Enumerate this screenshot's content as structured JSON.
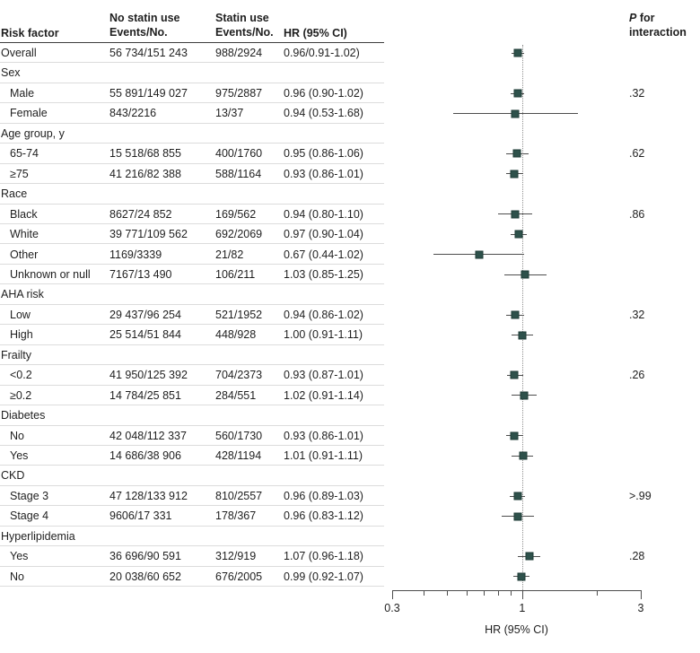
{
  "figure": {
    "col_header_risk": "Risk factor",
    "col_header_no_statin_l1": "No statin use",
    "col_header_no_statin_l2": "Events/No.",
    "col_header_statin_l1": "Statin use",
    "col_header_statin_l2": "Events/No.",
    "col_header_hr": "HR (95% CI)",
    "p_header_italic": "P",
    "p_header_after": " for",
    "p_header_line2": "interaction"
  },
  "chart_data": {
    "type": "scatter",
    "variant": "forest-plot",
    "xscale": "log",
    "xlim": [
      0.3,
      3
    ],
    "major_ticks": [
      {
        "value": 0.3,
        "label": "0.3"
      },
      {
        "value": 1,
        "label": "1"
      },
      {
        "value": 3,
        "label": "3"
      }
    ],
    "minor_ticks": [
      0.4,
      0.5,
      0.6,
      0.7,
      0.8,
      0.9,
      2
    ],
    "reference_line": 1,
    "xlabel": "HR (95% CI)",
    "legend": "none",
    "rows": [
      {
        "type": "data",
        "label": "Overall",
        "indent": false,
        "no_statin": "56 734/151 243",
        "statin": "988/2924",
        "hr_text": "0.96/0.91-1.02)",
        "hr": 0.96,
        "lo": 0.91,
        "hi": 1.02,
        "p": ""
      },
      {
        "type": "group",
        "label": "Sex"
      },
      {
        "type": "data",
        "label": "Male",
        "indent": true,
        "no_statin": "55 891/149 027",
        "statin": "975/2887",
        "hr_text": "0.96 (0.90-1.02)",
        "hr": 0.96,
        "lo": 0.9,
        "hi": 1.02,
        "p": ".32"
      },
      {
        "type": "data",
        "label": "Female",
        "indent": true,
        "no_statin": "843/2216",
        "statin": "13/37",
        "hr_text": "0.94 (0.53-1.68)",
        "hr": 0.94,
        "lo": 0.53,
        "hi": 1.68,
        "p": ""
      },
      {
        "type": "group",
        "label": "Age group, y"
      },
      {
        "type": "data",
        "label": "65-74",
        "indent": true,
        "no_statin": "15 518/68 855",
        "statin": "400/1760",
        "hr_text": "0.95 (0.86-1.06)",
        "hr": 0.95,
        "lo": 0.86,
        "hi": 1.06,
        "p": ".62"
      },
      {
        "type": "data",
        "label": "≥75",
        "indent": true,
        "no_statin": "41 216/82 388",
        "statin": "588/1164",
        "hr_text": "0.93 (0.86-1.01)",
        "hr": 0.93,
        "lo": 0.86,
        "hi": 1.01,
        "p": ""
      },
      {
        "type": "group",
        "label": "Race"
      },
      {
        "type": "data",
        "label": "Black",
        "indent": true,
        "no_statin": "8627/24 852",
        "statin": "169/562",
        "hr_text": "0.94 (0.80-1.10)",
        "hr": 0.94,
        "lo": 0.8,
        "hi": 1.1,
        "p": ".86"
      },
      {
        "type": "data",
        "label": "White",
        "indent": true,
        "no_statin": "39 771/109 562",
        "statin": "692/2069",
        "hr_text": "0.97 (0.90-1.04)",
        "hr": 0.97,
        "lo": 0.9,
        "hi": 1.04,
        "p": ""
      },
      {
        "type": "data",
        "label": "Other",
        "indent": true,
        "no_statin": "1169/3339",
        "statin": "21/82",
        "hr_text": "0.67 (0.44-1.02)",
        "hr": 0.67,
        "lo": 0.44,
        "hi": 1.02,
        "p": ""
      },
      {
        "type": "data",
        "label": "Unknown or null",
        "indent": true,
        "no_statin": "7167/13 490",
        "statin": "106/211",
        "hr_text": "1.03 (0.85-1.25)",
        "hr": 1.03,
        "lo": 0.85,
        "hi": 1.25,
        "p": ""
      },
      {
        "type": "group",
        "label": "AHA risk"
      },
      {
        "type": "data",
        "label": "Low",
        "indent": true,
        "no_statin": "29 437/96 254",
        "statin": "521/1952",
        "hr_text": "0.94 (0.86-1.02)",
        "hr": 0.94,
        "lo": 0.86,
        "hi": 1.02,
        "p": ".32"
      },
      {
        "type": "data",
        "label": "High",
        "indent": true,
        "no_statin": "25 514/51 844",
        "statin": "448/928",
        "hr_text": "1.00 (0.91-1.11)",
        "hr": 1.0,
        "lo": 0.91,
        "hi": 1.11,
        "p": ""
      },
      {
        "type": "group",
        "label": "Frailty"
      },
      {
        "type": "data",
        "label": "<0.2",
        "indent": true,
        "no_statin": "41 950/125 392",
        "statin": "704/2373",
        "hr_text": "0.93 (0.87-1.01)",
        "hr": 0.93,
        "lo": 0.87,
        "hi": 1.01,
        "p": ".26"
      },
      {
        "type": "data",
        "label": "≥0.2",
        "indent": true,
        "no_statin": "14 784/25 851",
        "statin": "284/551",
        "hr_text": "1.02 (0.91-1.14)",
        "hr": 1.02,
        "lo": 0.91,
        "hi": 1.14,
        "p": ""
      },
      {
        "type": "group",
        "label": "Diabetes"
      },
      {
        "type": "data",
        "label": "No",
        "indent": true,
        "no_statin": "42 048/112 337",
        "statin": "560/1730",
        "hr_text": "0.93 (0.86-1.01)",
        "hr": 0.93,
        "lo": 0.86,
        "hi": 1.01,
        "p": ""
      },
      {
        "type": "data",
        "label": "Yes",
        "indent": true,
        "no_statin": "14 686/38 906",
        "statin": "428/1194",
        "hr_text": "1.01 (0.91-1.11)",
        "hr": 1.01,
        "lo": 0.91,
        "hi": 1.11,
        "p": ""
      },
      {
        "type": "group",
        "label": "CKD"
      },
      {
        "type": "data",
        "label": "Stage 3",
        "indent": true,
        "no_statin": "47 128/133 912",
        "statin": "810/2557",
        "hr_text": "0.96 (0.89-1.03)",
        "hr": 0.96,
        "lo": 0.89,
        "hi": 1.03,
        "p": ">.99"
      },
      {
        "type": "data",
        "label": "Stage 4",
        "indent": true,
        "no_statin": "9606/17 331",
        "statin": "178/367",
        "hr_text": "0.96 (0.83-1.12)",
        "hr": 0.96,
        "lo": 0.83,
        "hi": 1.12,
        "p": ""
      },
      {
        "type": "group",
        "label": "Hyperlipidemia"
      },
      {
        "type": "data",
        "label": "Yes",
        "indent": true,
        "no_statin": "36 696/90 591",
        "statin": "312/919",
        "hr_text": "1.07 (0.96-1.18)",
        "hr": 1.07,
        "lo": 0.96,
        "hi": 1.18,
        "p": ".28"
      },
      {
        "type": "data",
        "label": "No",
        "indent": true,
        "no_statin": "20 038/60 652",
        "statin": "676/2005",
        "hr_text": "0.99 (0.92-1.07)",
        "hr": 0.99,
        "lo": 0.92,
        "hi": 1.07,
        "p": ""
      }
    ]
  },
  "colors": {
    "marker_fill": "#2e514b",
    "marker_border": "#1d3a34",
    "ci_line": "#4d4d4d",
    "row_rule": "#dcdcdc",
    "header_rule": "#3d3d3d",
    "axis": "#4d4d4d",
    "ref_line": "#8f8f8f",
    "text": "#1f1f1f"
  }
}
